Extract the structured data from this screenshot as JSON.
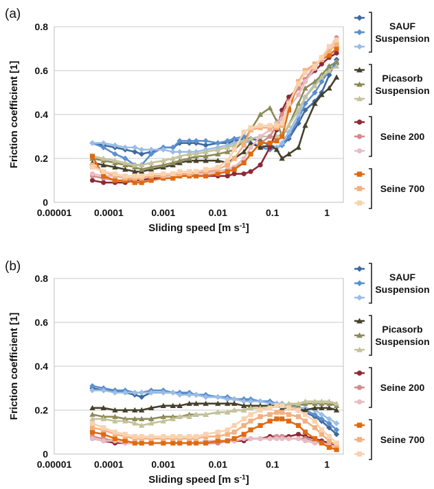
{
  "figure": {
    "panels": [
      "(a)",
      "(b)"
    ]
  },
  "legend": {
    "groups": [
      {
        "label_lines": [
          "SAUF",
          "Suspension"
        ],
        "colors": [
          "#3d6a9e",
          "#5b8fd1",
          "#9bbde6"
        ],
        "marker": "diamond"
      },
      {
        "label_lines": [
          "Picasorb",
          "Suspension"
        ],
        "colors": [
          "#45402a",
          "#8c8a56",
          "#c4c29a"
        ],
        "marker": "triangle"
      },
      {
        "label_lines": [
          "Seine 200"
        ],
        "colors": [
          "#8e2a36",
          "#d48b8c",
          "#e8bcc2"
        ],
        "marker": "circle"
      },
      {
        "label_lines": [
          "Seine 700"
        ],
        "colors": [
          "#e06a10",
          "#f5b07e",
          "#f9d2ae"
        ],
        "marker": "square"
      }
    ]
  },
  "chart_data": [
    {
      "type": "line",
      "panel": "(a)",
      "xlabel": "Sliding speed [m s-1]",
      "ylabel": "Friction coefficient [1]",
      "x_scale": "log",
      "xlim": [
        1e-05,
        2
      ],
      "ylim": [
        0,
        0.8
      ],
      "x_ticks": [
        "0.00001",
        "0.0001",
        "0.001",
        "0.01",
        "0.1",
        "1"
      ],
      "y_ticks": [
        "0",
        "0.2",
        "0.4",
        "0.6",
        "0.8"
      ],
      "grid": "horizontal",
      "x": [
        5e-05,
        8e-05,
        0.00013,
        0.0002,
        0.0003,
        0.0004,
        0.0006,
        0.001,
        0.0015,
        0.002,
        0.003,
        0.004,
        0.006,
        0.01,
        0.015,
        0.02,
        0.03,
        0.04,
        0.06,
        0.09,
        0.12,
        0.15,
        0.2,
        0.3,
        0.4,
        0.6,
        0.8,
        1.1,
        1.5
      ],
      "series": [
        {
          "group": 0,
          "values": [
            0.27,
            0.26,
            0.25,
            0.24,
            0.23,
            0.22,
            0.23,
            0.25,
            0.25,
            0.27,
            0.27,
            0.27,
            0.26,
            0.27,
            0.27,
            0.28,
            0.29,
            0.29,
            0.28,
            0.26,
            0.25,
            0.26,
            0.29,
            0.36,
            0.42,
            0.46,
            0.5,
            0.58,
            0.65
          ]
        },
        {
          "group": 1,
          "values": [
            0.27,
            0.25,
            0.22,
            0.2,
            0.17,
            0.17,
            0.22,
            0.25,
            0.25,
            0.28,
            0.28,
            0.28,
            0.28,
            0.27,
            0.28,
            0.29,
            0.3,
            0.27,
            0.25,
            0.24,
            0.25,
            0.26,
            0.3,
            0.38,
            0.45,
            0.5,
            0.55,
            0.6,
            0.63
          ]
        },
        {
          "group": 2,
          "values": [
            0.27,
            0.27,
            0.26,
            0.25,
            0.25,
            0.24,
            0.24,
            0.24,
            0.23,
            0.23,
            0.23,
            0.23,
            0.24,
            0.25,
            0.26,
            0.27,
            0.28,
            0.27,
            0.26,
            0.25,
            0.25,
            0.27,
            0.32,
            0.4,
            0.48,
            0.54,
            0.58,
            0.62,
            0.64
          ]
        },
        {
          "group": 3,
          "values": [
            0.18,
            0.17,
            0.16,
            0.15,
            0.14,
            0.14,
            0.15,
            0.16,
            0.17,
            0.18,
            0.19,
            0.19,
            0.19,
            0.19,
            0.18,
            0.2,
            0.23,
            0.27,
            0.25,
            0.26,
            0.24,
            0.2,
            0.22,
            0.25,
            0.35,
            0.45,
            0.49,
            0.52,
            0.57
          ]
        },
        {
          "group": 4,
          "values": [
            0.2,
            0.19,
            0.18,
            0.17,
            0.16,
            0.15,
            0.16,
            0.17,
            0.18,
            0.19,
            0.2,
            0.21,
            0.21,
            0.22,
            0.23,
            0.24,
            0.28,
            0.33,
            0.4,
            0.43,
            0.37,
            0.3,
            0.35,
            0.45,
            0.52,
            0.55,
            0.58,
            0.62,
            0.64
          ]
        },
        {
          "group": 5,
          "values": [
            0.21,
            0.2,
            0.19,
            0.18,
            0.17,
            0.17,
            0.18,
            0.19,
            0.2,
            0.21,
            0.22,
            0.22,
            0.23,
            0.24,
            0.25,
            0.26,
            0.28,
            0.29,
            0.3,
            0.3,
            0.3,
            0.31,
            0.35,
            0.42,
            0.48,
            0.53,
            0.57,
            0.6,
            0.62
          ]
        },
        {
          "group": 6,
          "values": [
            0.1,
            0.09,
            0.09,
            0.09,
            0.1,
            0.1,
            0.11,
            0.11,
            0.11,
            0.12,
            0.12,
            0.12,
            0.12,
            0.12,
            0.12,
            0.13,
            0.13,
            0.14,
            0.17,
            0.25,
            0.33,
            0.42,
            0.48,
            0.52,
            0.56,
            0.6,
            0.63,
            0.66,
            0.68
          ]
        },
        {
          "group": 7,
          "values": [
            0.12,
            0.11,
            0.1,
            0.1,
            0.11,
            0.11,
            0.12,
            0.12,
            0.13,
            0.13,
            0.13,
            0.13,
            0.14,
            0.14,
            0.15,
            0.16,
            0.18,
            0.22,
            0.27,
            0.3,
            0.35,
            0.4,
            0.46,
            0.52,
            0.56,
            0.62,
            0.66,
            0.7,
            0.75
          ]
        },
        {
          "group": 8,
          "values": [
            0.13,
            0.12,
            0.12,
            0.11,
            0.11,
            0.11,
            0.12,
            0.12,
            0.12,
            0.13,
            0.13,
            0.13,
            0.13,
            0.14,
            0.15,
            0.16,
            0.2,
            0.25,
            0.3,
            0.33,
            0.36,
            0.38,
            0.43,
            0.49,
            0.55,
            0.61,
            0.66,
            0.7,
            0.74
          ]
        },
        {
          "group": 9,
          "values": [
            0.21,
            0.12,
            0.1,
            0.1,
            0.09,
            0.09,
            0.1,
            0.11,
            0.11,
            0.12,
            0.12,
            0.12,
            0.12,
            0.13,
            0.14,
            0.15,
            0.18,
            0.22,
            0.27,
            0.27,
            0.28,
            0.3,
            0.42,
            0.55,
            0.6,
            0.63,
            0.65,
            0.67,
            0.7
          ]
        },
        {
          "group": 10,
          "values": [
            0.17,
            0.14,
            0.12,
            0.11,
            0.11,
            0.11,
            0.12,
            0.12,
            0.13,
            0.13,
            0.13,
            0.14,
            0.14,
            0.15,
            0.17,
            0.2,
            0.26,
            0.33,
            0.34,
            0.34,
            0.34,
            0.35,
            0.45,
            0.55,
            0.6,
            0.63,
            0.65,
            0.69,
            0.72
          ]
        },
        {
          "group": 11,
          "values": [
            0.16,
            0.14,
            0.13,
            0.12,
            0.12,
            0.12,
            0.13,
            0.13,
            0.13,
            0.14,
            0.14,
            0.14,
            0.15,
            0.16,
            0.19,
            0.24,
            0.32,
            0.34,
            0.35,
            0.35,
            0.35,
            0.36,
            0.45,
            0.54,
            0.59,
            0.62,
            0.66,
            0.71,
            0.74
          ]
        }
      ]
    },
    {
      "type": "line",
      "panel": "(b)",
      "xlabel": "Sliding speed [m s-1]",
      "ylabel": "Friction coefficient [1]",
      "x_scale": "log",
      "xlim": [
        1e-05,
        2
      ],
      "ylim": [
        0,
        0.8
      ],
      "x_ticks": [
        "0.00001",
        "0.0001",
        "0.001",
        "0.01",
        "0.1",
        "1"
      ],
      "y_ticks": [
        "0",
        "0.2",
        "0.4",
        "0.6",
        "0.8"
      ],
      "grid": "horizontal",
      "x": [
        5e-05,
        8e-05,
        0.00013,
        0.0002,
        0.0003,
        0.0004,
        0.0006,
        0.001,
        0.0015,
        0.002,
        0.003,
        0.004,
        0.006,
        0.01,
        0.015,
        0.02,
        0.03,
        0.04,
        0.06,
        0.09,
        0.12,
        0.15,
        0.2,
        0.3,
        0.4,
        0.6,
        0.8,
        1.1,
        1.5
      ],
      "series": [
        {
          "group": 0,
          "values": [
            0.3,
            0.29,
            0.29,
            0.28,
            0.27,
            0.26,
            0.28,
            0.28,
            0.28,
            0.28,
            0.27,
            0.27,
            0.26,
            0.26,
            0.25,
            0.25,
            0.25,
            0.24,
            0.24,
            0.24,
            0.23,
            0.22,
            0.21,
            0.2,
            0.19,
            0.17,
            0.15,
            0.12,
            0.09
          ]
        },
        {
          "group": 1,
          "values": [
            0.31,
            0.3,
            0.29,
            0.29,
            0.28,
            0.28,
            0.29,
            0.29,
            0.28,
            0.28,
            0.28,
            0.27,
            0.27,
            0.26,
            0.26,
            0.25,
            0.25,
            0.25,
            0.24,
            0.24,
            0.23,
            0.23,
            0.22,
            0.21,
            0.2,
            0.18,
            0.16,
            0.14,
            0.11
          ]
        },
        {
          "group": 2,
          "values": [
            0.29,
            0.29,
            0.28,
            0.28,
            0.28,
            0.28,
            0.28,
            0.28,
            0.28,
            0.27,
            0.27,
            0.27,
            0.26,
            0.26,
            0.25,
            0.25,
            0.24,
            0.24,
            0.24,
            0.23,
            0.23,
            0.23,
            0.22,
            0.21,
            0.21,
            0.2,
            0.18,
            0.16,
            0.14
          ]
        },
        {
          "group": 3,
          "values": [
            0.21,
            0.21,
            0.2,
            0.2,
            0.2,
            0.2,
            0.21,
            0.22,
            0.22,
            0.22,
            0.23,
            0.23,
            0.23,
            0.23,
            0.23,
            0.23,
            0.22,
            0.22,
            0.22,
            0.22,
            0.22,
            0.21,
            0.21,
            0.2,
            0.2,
            0.21,
            0.21,
            0.21,
            0.2
          ]
        },
        {
          "group": 4,
          "values": [
            0.18,
            0.17,
            0.17,
            0.16,
            0.16,
            0.16,
            0.16,
            0.17,
            0.17,
            0.17,
            0.18,
            0.18,
            0.18,
            0.19,
            0.19,
            0.2,
            0.2,
            0.21,
            0.21,
            0.21,
            0.22,
            0.22,
            0.22,
            0.22,
            0.23,
            0.23,
            0.23,
            0.23,
            0.22
          ]
        },
        {
          "group": 5,
          "values": [
            0.16,
            0.16,
            0.15,
            0.15,
            0.14,
            0.13,
            0.14,
            0.15,
            0.16,
            0.17,
            0.17,
            0.18,
            0.18,
            0.19,
            0.19,
            0.2,
            0.2,
            0.21,
            0.21,
            0.21,
            0.22,
            0.22,
            0.23,
            0.23,
            0.24,
            0.24,
            0.24,
            0.24,
            0.23
          ]
        },
        {
          "group": 6,
          "values": [
            0.07,
            0.06,
            0.05,
            0.05,
            0.05,
            0.05,
            0.05,
            0.05,
            0.05,
            0.05,
            0.05,
            0.05,
            0.05,
            0.05,
            0.06,
            0.06,
            0.06,
            0.07,
            0.07,
            0.08,
            0.08,
            0.08,
            0.08,
            0.09,
            0.08,
            0.07,
            0.06,
            0.05,
            0.04
          ]
        },
        {
          "group": 7,
          "values": [
            0.08,
            0.07,
            0.06,
            0.05,
            0.05,
            0.05,
            0.05,
            0.05,
            0.05,
            0.05,
            0.05,
            0.05,
            0.05,
            0.05,
            0.06,
            0.06,
            0.07,
            0.07,
            0.07,
            0.07,
            0.08,
            0.08,
            0.07,
            0.07,
            0.07,
            0.06,
            0.05,
            0.04,
            0.03
          ]
        },
        {
          "group": 8,
          "values": [
            0.07,
            0.06,
            0.06,
            0.05,
            0.05,
            0.05,
            0.05,
            0.05,
            0.05,
            0.05,
            0.05,
            0.05,
            0.06,
            0.06,
            0.06,
            0.06,
            0.07,
            0.07,
            0.07,
            0.07,
            0.07,
            0.07,
            0.07,
            0.07,
            0.06,
            0.05,
            0.05,
            0.04,
            0.03
          ]
        },
        {
          "group": 9,
          "values": [
            0.1,
            0.09,
            0.07,
            0.06,
            0.05,
            0.05,
            0.05,
            0.05,
            0.05,
            0.05,
            0.05,
            0.05,
            0.05,
            0.06,
            0.06,
            0.07,
            0.09,
            0.11,
            0.13,
            0.15,
            0.16,
            0.16,
            0.15,
            0.13,
            0.1,
            0.07,
            0.05,
            0.03,
            0.02
          ]
        },
        {
          "group": 10,
          "values": [
            0.12,
            0.11,
            0.09,
            0.08,
            0.07,
            0.07,
            0.07,
            0.07,
            0.07,
            0.07,
            0.07,
            0.07,
            0.08,
            0.08,
            0.09,
            0.1,
            0.13,
            0.15,
            0.17,
            0.18,
            0.19,
            0.19,
            0.18,
            0.17,
            0.15,
            0.12,
            0.09,
            0.06,
            0.04
          ]
        },
        {
          "group": 11,
          "values": [
            0.14,
            0.12,
            0.1,
            0.09,
            0.08,
            0.08,
            0.08,
            0.08,
            0.08,
            0.08,
            0.08,
            0.08,
            0.09,
            0.1,
            0.11,
            0.13,
            0.16,
            0.18,
            0.2,
            0.21,
            0.22,
            0.22,
            0.21,
            0.2,
            0.18,
            0.15,
            0.11,
            0.08,
            0.05
          ]
        }
      ]
    }
  ]
}
